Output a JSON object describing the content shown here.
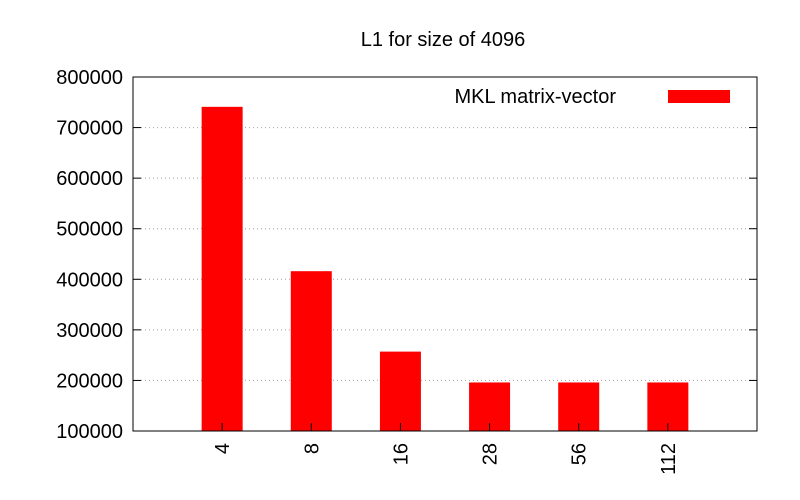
{
  "chart_data": {
    "type": "bar",
    "title": "L1 for size of 4096",
    "xlabel": "",
    "ylabel": "",
    "categories": [
      "4",
      "8",
      "16",
      "28",
      "56",
      "112"
    ],
    "series": [
      {
        "name": "MKL matrix-vector",
        "color": "#ff0000",
        "values": [
          741000,
          416000,
          257000,
          196000,
          196000,
          196000
        ]
      }
    ],
    "ylim": [
      100000,
      800000
    ],
    "yticks": [
      100000,
      200000,
      300000,
      400000,
      500000,
      600000,
      700000,
      800000
    ],
    "grid": "y-dotted",
    "legend_position": "top-right"
  }
}
